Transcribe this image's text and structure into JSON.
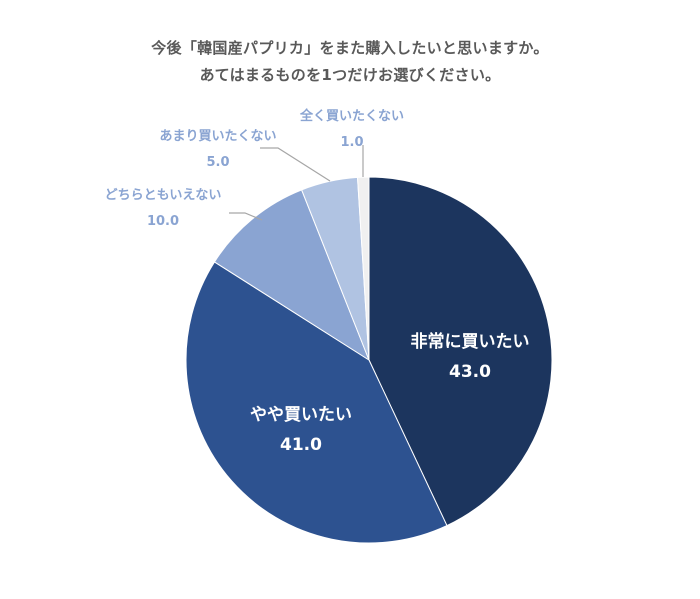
{
  "title": {
    "line1": "今後「韓国産パプリカ」をまた購入したいと思いますか。",
    "line2": "あてはまるものを1つだけお選びください。"
  },
  "labels": {
    "s0": {
      "name": "非常に買いたい",
      "value": "43.0"
    },
    "s1": {
      "name": "やや買いたい",
      "value": "41.0"
    },
    "s2": {
      "name": "どちらともいえない",
      "value": "10.0"
    },
    "s3": {
      "name": "あまり買いたくない",
      "value": "5.0"
    },
    "s4": {
      "name": "全く買いたくない",
      "value": "1.0"
    }
  },
  "chart_data": {
    "type": "pie",
    "title": "今後「韓国産パプリカ」をまた購入したいと思いますか。あてはまるものを1つだけお選びください。",
    "categories": [
      "非常に買いたい",
      "やや買いたい",
      "どちらともいえない",
      "あまり買いたくない",
      "全く買いたくない"
    ],
    "values": [
      43.0,
      41.0,
      10.0,
      5.0,
      1.0
    ],
    "colors": [
      "#1c355e",
      "#2d5290",
      "#8aa4d2",
      "#b0c3e2",
      "#f0f0f0"
    ],
    "start_angle": "12 o'clock, clockwise",
    "units": "%",
    "legend": "none (data labels with category names)"
  }
}
